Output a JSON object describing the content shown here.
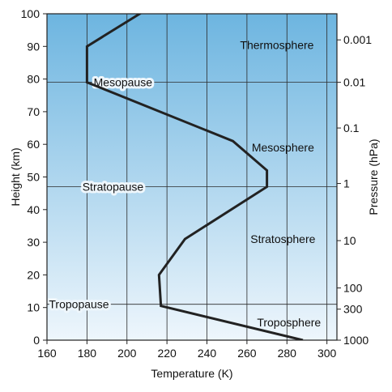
{
  "chart_data": {
    "type": "line",
    "xlabel": "Temperature (K)",
    "ylabel": "Height (km)",
    "y2label": "Pressure (hPa)",
    "xlim": [
      160,
      305
    ],
    "ylim": [
      0,
      100
    ],
    "xticks": [
      160,
      180,
      200,
      220,
      240,
      260,
      280,
      300
    ],
    "yticks": [
      0,
      10,
      20,
      30,
      40,
      50,
      60,
      70,
      80,
      90,
      100
    ],
    "pressure_ticks": [
      {
        "label": "0.001",
        "height": 92
      },
      {
        "label": "0.01",
        "height": 79
      },
      {
        "label": "0.1",
        "height": 65
      },
      {
        "label": "1",
        "height": 48
      },
      {
        "label": "10",
        "height": 30.5
      },
      {
        "label": "100",
        "height": 16
      },
      {
        "label": "300",
        "height": 9.5
      },
      {
        "label": "1000",
        "height": 0
      }
    ],
    "grid": true,
    "background": {
      "top_color": "#6db5e0",
      "bottom_color": "#eef6fc"
    },
    "line_color": "#222222",
    "series": [
      {
        "x": [
          288,
          217,
          216,
          229,
          270,
          270,
          253,
          180,
          180,
          209
        ],
        "y": [
          0,
          10.5,
          20,
          31,
          47,
          52,
          61,
          79,
          90,
          101
        ]
      }
    ],
    "pause_lines": [
      {
        "label": "Mesopause",
        "height": 79,
        "label_temp": 198
      },
      {
        "label": "Stratopause",
        "height": 47,
        "label_temp": 193
      },
      {
        "label": "Tropopause",
        "height": 11,
        "label_temp": 176
      }
    ],
    "regions": [
      {
        "label": "Thermosphere",
        "temp": 275,
        "height": 90.5
      },
      {
        "label": "Mesosphere",
        "temp": 278,
        "height": 59
      },
      {
        "label": "Stratosphere",
        "temp": 278,
        "height": 31
      },
      {
        "label": "Troposphere",
        "temp": 281,
        "height": 5.5
      }
    ]
  }
}
